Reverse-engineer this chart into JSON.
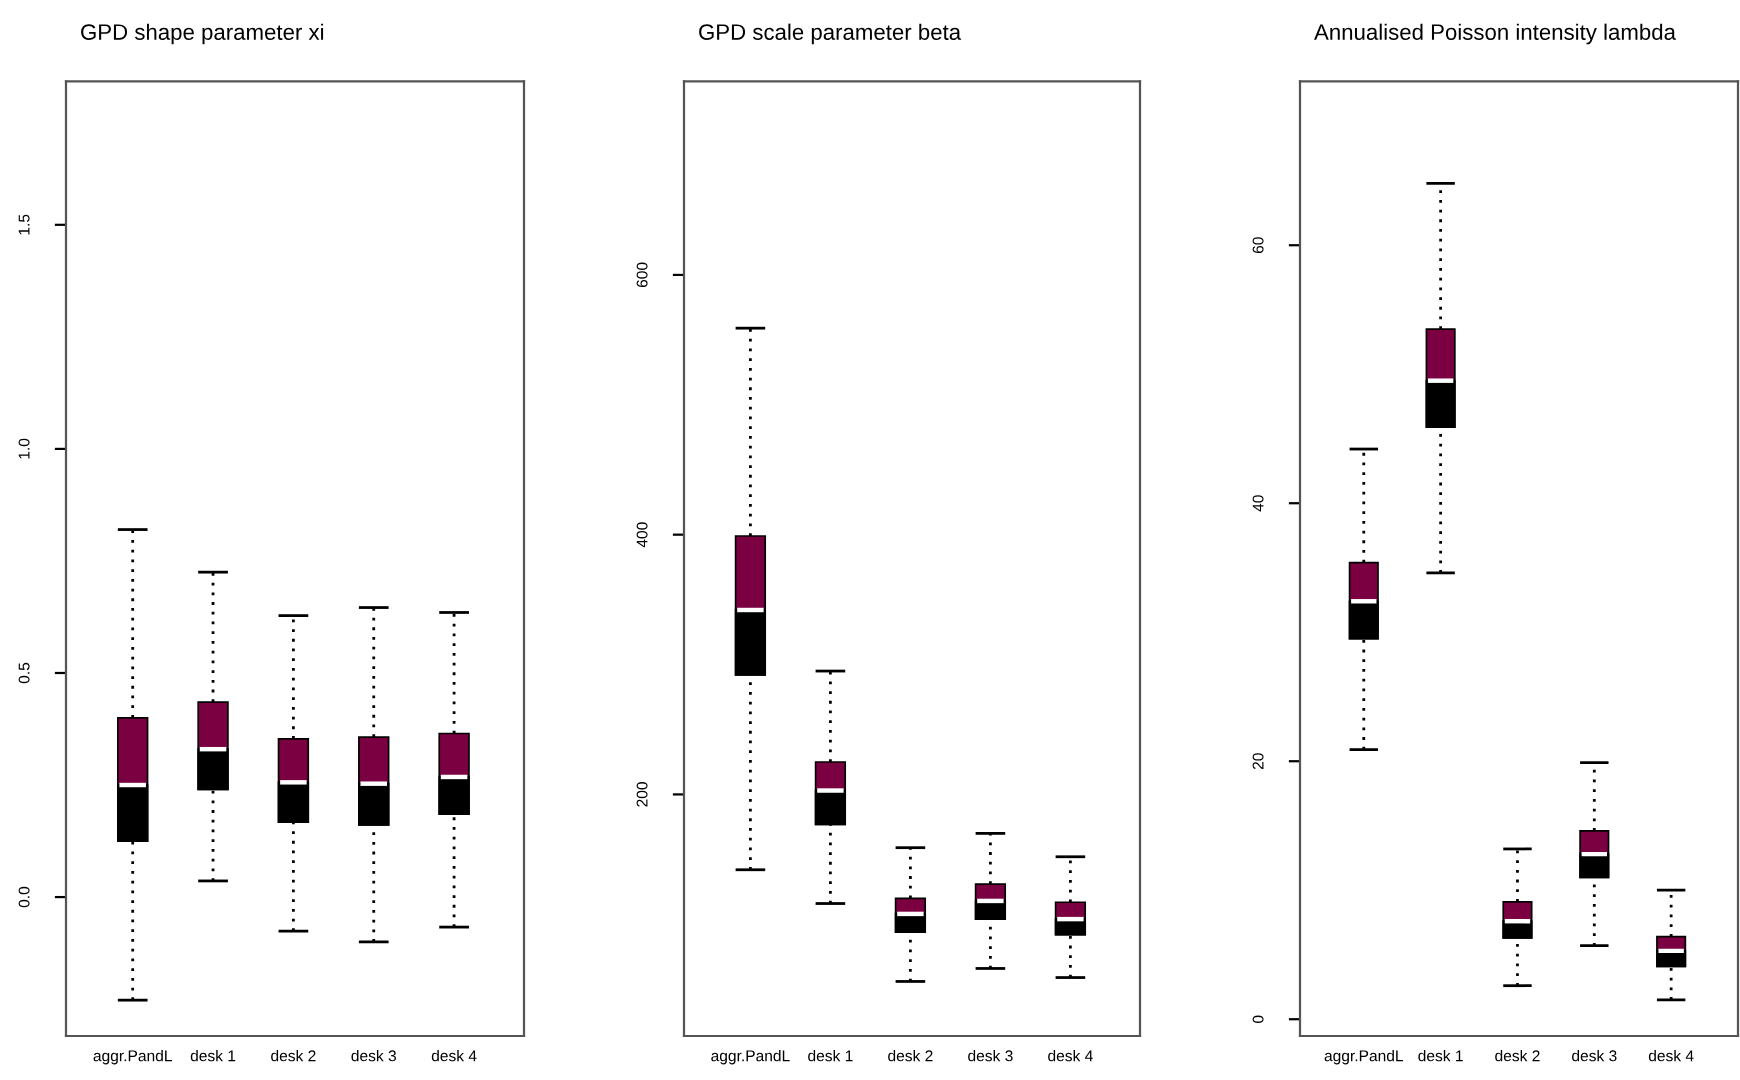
{
  "chart_data": [
    {
      "type": "box",
      "title": "GPD shape parameter xi",
      "categories": [
        "aggr.PandL",
        "desk 1",
        "desk 2",
        "desk 3",
        "desk 4"
      ],
      "ylim": [
        -0.31,
        1.82
      ],
      "yticks": [
        {
          "value": 0,
          "label": "0.0"
        },
        0.5,
        {
          "value": 1,
          "label": "1.0"
        },
        1.5
      ],
      "series": [
        {
          "color": "#7b0041",
          "boxes": [
            {
              "low": -0.23,
              "q1": 0.125,
              "median": 0.25,
              "q3": 0.4,
              "high": 0.82
            },
            {
              "low": 0.036,
              "q1": 0.24,
              "median": 0.33,
              "q3": 0.435,
              "high": 0.725
            },
            {
              "low": -0.076,
              "q1": 0.167,
              "median": 0.256,
              "q3": 0.353,
              "high": 0.628
            },
            {
              "low": -0.1,
              "q1": 0.161,
              "median": 0.253,
              "q3": 0.357,
              "high": 0.646
            },
            {
              "low": -0.067,
              "q1": 0.185,
              "median": 0.268,
              "q3": 0.365,
              "high": 0.635
            }
          ]
        }
      ]
    },
    {
      "type": "box",
      "title": "GPD scale parameter beta",
      "categories": [
        "aggr.PandL",
        "desk 1",
        "desk 2",
        "desk 3",
        "desk 4"
      ],
      "ylim": [
        14,
        749
      ],
      "yticks": [
        200,
        400,
        600
      ],
      "series": [
        {
          "color": "#7b0041",
          "boxes": [
            {
              "low": 142,
              "q1": 292,
              "median": 342,
              "q3": 399,
              "high": 559
            },
            {
              "low": 116,
              "q1": 177,
              "median": 203,
              "q3": 225,
              "high": 295
            },
            {
              "low": 56,
              "q1": 94,
              "median": 108,
              "q3": 120,
              "high": 159
            },
            {
              "low": 66,
              "q1": 104,
              "median": 118,
              "q3": 131,
              "high": 170
            },
            {
              "low": 59,
              "q1": 92,
              "median": 104,
              "q3": 117,
              "high": 152
            }
          ]
        }
      ]
    },
    {
      "type": "box",
      "title": "Annualised Poisson intensity lambda",
      "categories": [
        "aggr.PandL",
        "desk 1",
        "desk 2",
        "desk 3",
        "desk 4"
      ],
      "ylim": [
        -1.3,
        72.7
      ],
      "yticks": [
        0,
        20,
        40,
        60
      ],
      "series": [
        {
          "color": "#7b0041",
          "boxes": [
            {
              "low": 20.9,
              "q1": 29.5,
              "median": 32.4,
              "q3": 35.4,
              "high": 44.2
            },
            {
              "low": 34.6,
              "q1": 45.9,
              "median": 49.5,
              "q3": 53.5,
              "high": 64.8
            },
            {
              "low": 2.6,
              "q1": 6.3,
              "median": 7.6,
              "q3": 9.1,
              "high": 13.2
            },
            {
              "low": 5.7,
              "q1": 11.0,
              "median": 12.8,
              "q3": 14.6,
              "high": 19.9
            },
            {
              "low": 1.5,
              "q1": 4.1,
              "median": 5.3,
              "q3": 6.4,
              "high": 10.0
            }
          ]
        }
      ]
    }
  ]
}
